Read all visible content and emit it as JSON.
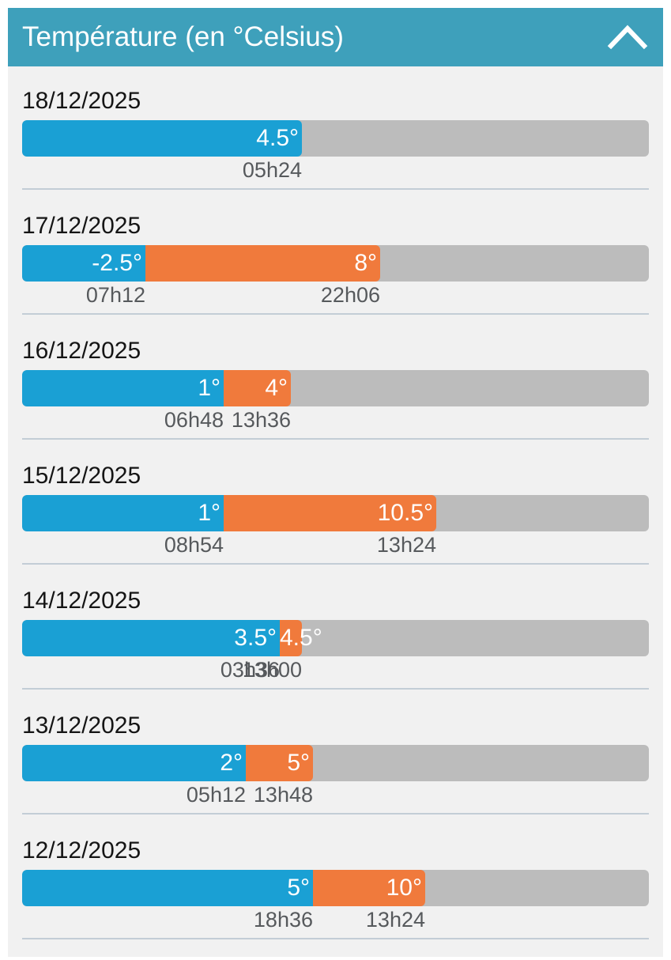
{
  "header": {
    "title": "Température (en °Celsius)",
    "collapse_icon": "chevron-up-icon"
  },
  "scale": {
    "min_temp": -8,
    "max_temp": 20
  },
  "colors": {
    "header_bg": "#3ea0bb",
    "min_bar": "#1aa0d4",
    "max_bar": "#f07a3c",
    "track": "#bcbcbc",
    "panel_bg": "#f1f1f1"
  },
  "days": [
    {
      "date": "18/12/2025",
      "min": {
        "label": "4.5°",
        "value": 4.5,
        "time": "05h24"
      },
      "max": null
    },
    {
      "date": "17/12/2025",
      "min": {
        "label": "-2.5°",
        "value": -2.5,
        "time": "07h12"
      },
      "max": {
        "label": "8°",
        "value": 8,
        "time": "22h06"
      }
    },
    {
      "date": "16/12/2025",
      "min": {
        "label": "1°",
        "value": 1,
        "time": "06h48"
      },
      "max": {
        "label": "4°",
        "value": 4,
        "time": "13h36"
      }
    },
    {
      "date": "15/12/2025",
      "min": {
        "label": "1°",
        "value": 1,
        "time": "08h54"
      },
      "max": {
        "label": "10.5°",
        "value": 10.5,
        "time": "13h24"
      }
    },
    {
      "date": "14/12/2025",
      "min": {
        "label": "3.5°",
        "value": 3.5,
        "time": "03h36"
      },
      "max": {
        "label": "4.5°",
        "value": 4.5,
        "time": "13h00"
      }
    },
    {
      "date": "13/12/2025",
      "min": {
        "label": "2°",
        "value": 2,
        "time": "05h12"
      },
      "max": {
        "label": "5°",
        "value": 5,
        "time": "13h48"
      }
    },
    {
      "date": "12/12/2025",
      "min": {
        "label": "5°",
        "value": 5,
        "time": "18h36"
      },
      "max": {
        "label": "10°",
        "value": 10,
        "time": "13h24"
      }
    }
  ]
}
